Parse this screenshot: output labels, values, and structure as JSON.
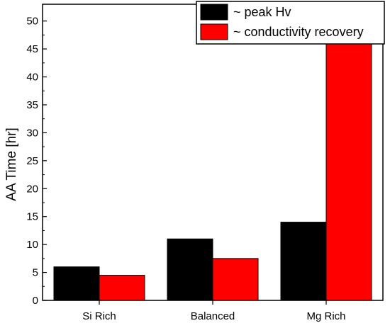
{
  "chart_data": {
    "type": "bar",
    "categories": [
      "Si Rich",
      "Balanced",
      "Mg Rich"
    ],
    "series": [
      {
        "name": "~ peak Hv",
        "color": "#000000",
        "values": [
          6,
          11,
          14
        ]
      },
      {
        "name": "~ conductivity recovery",
        "color": "#ff0000",
        "values": [
          4.5,
          7.5,
          48
        ]
      }
    ],
    "title": "",
    "xlabel": "",
    "ylabel": "AA Time [hr]",
    "ylim": [
      0,
      53
    ],
    "yticks": [
      0,
      5,
      10,
      15,
      20,
      25,
      30,
      35,
      40,
      45,
      50
    ],
    "grid": false,
    "legend_position": "top-right"
  }
}
